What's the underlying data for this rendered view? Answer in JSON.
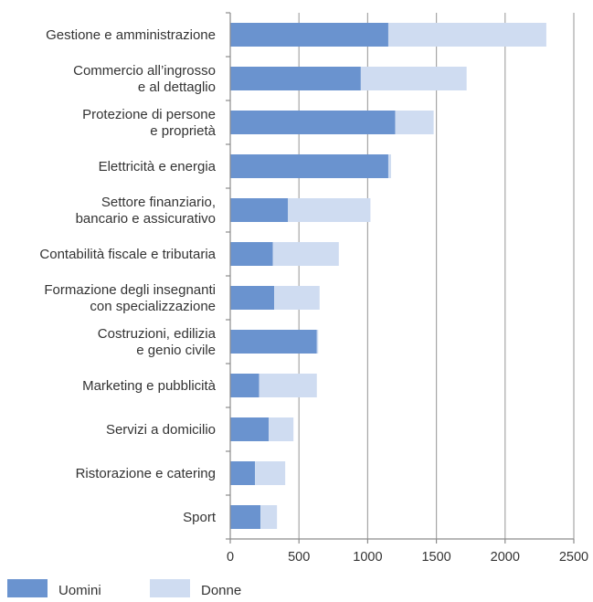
{
  "chart_data": {
    "type": "bar",
    "orientation": "horizontal",
    "stacked": true,
    "categories": [
      [
        "Gestione e amministrazione"
      ],
      [
        "Commercio all’ingrosso",
        "e al dettaglio"
      ],
      [
        "Protezione di persone",
        "e proprietà"
      ],
      [
        "Elettricità e energia"
      ],
      [
        "Settore finanziario,",
        "bancario e assicurativo"
      ],
      [
        "Contabilità fiscale e tributaria"
      ],
      [
        "Formazione degli insegnanti",
        "con specializzazione"
      ],
      [
        "Costruzioni, edilizia",
        "e genio civile"
      ],
      [
        "Marketing e pubblicità"
      ],
      [
        "Servizi a domicilio"
      ],
      [
        "Ristorazione e catering"
      ],
      [
        "Sport"
      ]
    ],
    "series": [
      {
        "name": "Uomini",
        "color": "#6a93cf",
        "values": [
          1150,
          950,
          1200,
          1150,
          420,
          310,
          320,
          630,
          210,
          280,
          180,
          220
        ]
      },
      {
        "name": "Donne",
        "color": "#cfdcf1",
        "values": [
          1150,
          770,
          280,
          20,
          600,
          480,
          330,
          10,
          420,
          180,
          220,
          120
        ]
      }
    ],
    "xlim": [
      0,
      2500
    ],
    "xticks": [
      "0",
      "500",
      "1000",
      "1500",
      "2000",
      "2500"
    ],
    "grid": true,
    "legend": "bottom-left"
  }
}
